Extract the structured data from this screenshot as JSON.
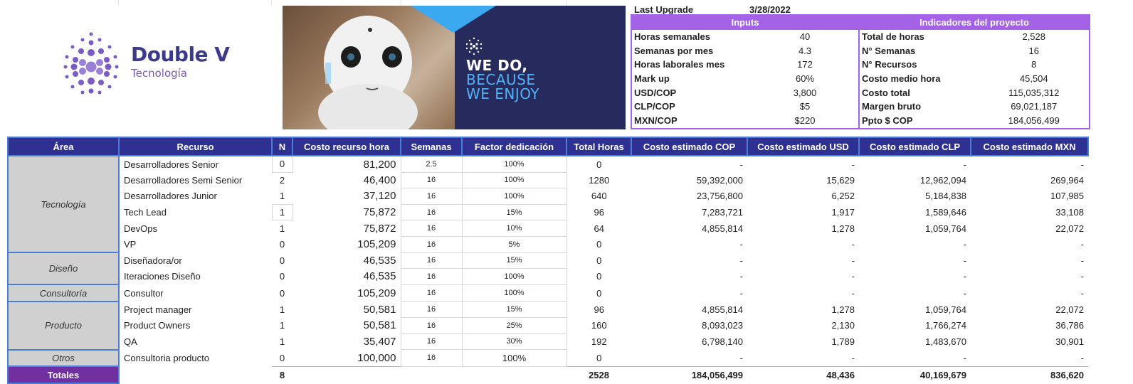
{
  "brand": {
    "name": "Double V",
    "tagline": "Tecnología"
  },
  "banner": {
    "line1": "WE DO,",
    "line2": "BECAUSE",
    "line3": "WE ENJOY"
  },
  "last_upgrade": {
    "label": "Last Upgrade",
    "value": "3/28/2022"
  },
  "inputs": {
    "title": "Inputs",
    "rows": [
      {
        "label": "Horas semanales",
        "value": "40"
      },
      {
        "label": "Semanas por mes",
        "value": "4.3"
      },
      {
        "label": "Horas laborales mes",
        "value": "172"
      },
      {
        "label": "Mark up",
        "value": "60%"
      },
      {
        "label": "USD/COP",
        "value": "3,800"
      },
      {
        "label": "CLP/COP",
        "value": "$5"
      },
      {
        "label": "MXN/COP",
        "value": "$220"
      }
    ]
  },
  "indicadores": {
    "title": "Indicadores del proyecto",
    "rows": [
      {
        "label": "Total de horas",
        "value": "2,528"
      },
      {
        "label": "N° Semanas",
        "value": "16"
      },
      {
        "label": "N° Recursos",
        "value": "8"
      },
      {
        "label": "Costo medio hora",
        "value": "45,504"
      },
      {
        "label": "Costo total",
        "value": "115,035,312"
      },
      {
        "label": "Margen bruto",
        "value": "69,021,187"
      },
      {
        "label": "Ppto $ COP",
        "value": "184,056,499"
      }
    ]
  },
  "table": {
    "headers": [
      "Área",
      "Recurso",
      "N",
      "Costo recurso hora",
      "Semanas",
      "Factor dedicación",
      "Total Horas",
      "Costo estimado COP",
      "Costo estimado USD",
      "Costo estimado CLP",
      "Costo estimado MXN"
    ],
    "areas": [
      "Tecnología",
      "Diseño",
      "Consultoría",
      "Producto",
      "Otros"
    ],
    "rows": [
      [
        "Desarrolladores Senior",
        "0",
        "81,200",
        "2.5",
        "100%",
        "0",
        "-",
        "-",
        "-",
        "-"
      ],
      [
        "Desarrolladores Semi Senior",
        "2",
        "46,400",
        "16",
        "100%",
        "1280",
        "59,392,000",
        "15,629",
        "12,962,094",
        "269,964"
      ],
      [
        "Desarrolladores Junior",
        "1",
        "37,120",
        "16",
        "100%",
        "640",
        "23,756,800",
        "6,252",
        "5,184,838",
        "107,985"
      ],
      [
        "Tech Lead",
        "1",
        "75,872",
        "16",
        "15%",
        "96",
        "7,283,721",
        "1,917",
        "1,589,646",
        "33,108"
      ],
      [
        "DevOps",
        "1",
        "75,872",
        "16",
        "10%",
        "64",
        "4,855,814",
        "1,278",
        "1,059,764",
        "22,072"
      ],
      [
        "VP",
        "0",
        "105,209",
        "16",
        "5%",
        "0",
        "-",
        "-",
        "-",
        "-"
      ],
      [
        "Diseñadora/or",
        "0",
        "46,535",
        "16",
        "15%",
        "0",
        "-",
        "-",
        "-",
        "-"
      ],
      [
        "Iteraciones Diseño",
        "0",
        "46,535",
        "16",
        "100%",
        "0",
        "-",
        "-",
        "-",
        "-"
      ],
      [
        "Consultor",
        "0",
        "105,209",
        "16",
        "100%",
        "0",
        "-",
        "-",
        "-",
        "-"
      ],
      [
        "Project manager",
        "1",
        "50,581",
        "16",
        "15%",
        "96",
        "4,855,814",
        "1,278",
        "1,059,764",
        "22,072"
      ],
      [
        "Product Owners",
        "1",
        "50,581",
        "16",
        "25%",
        "160",
        "8,093,023",
        "2,130",
        "1,766,274",
        "36,786"
      ],
      [
        "QA",
        "1",
        "35,407",
        "16",
        "30%",
        "192",
        "6,798,140",
        "1,789",
        "1,483,670",
        "30,901"
      ],
      [
        "Consultoria producto",
        "0",
        "100,000",
        "16",
        "100%",
        "0",
        "-",
        "-",
        "-",
        "-"
      ]
    ],
    "totals": {
      "label": "Totales",
      "n": "8",
      "hours": "2528",
      "cop": "184,056,499",
      "usd": "48,436",
      "clp": "40,169,679",
      "mxn": "836,620"
    }
  },
  "colors": {
    "header_bg": "#2e3192",
    "panel": "#a463e6",
    "total_label": "#7030a0",
    "area_bg": "#d0d0d0"
  }
}
